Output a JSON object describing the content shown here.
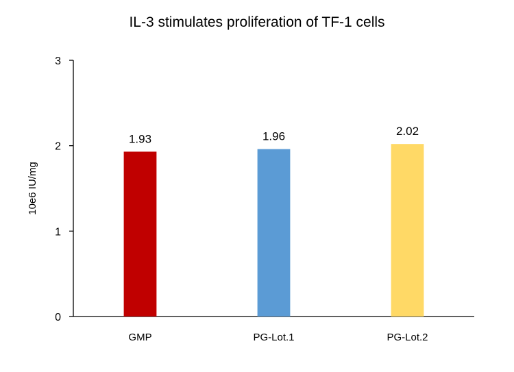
{
  "chart_data": {
    "type": "bar",
    "title": "IL-3 stimulates proliferation of  TF-1 cells",
    "xlabel": "",
    "ylabel": "10e6 IU/mg",
    "ylim": [
      0,
      3
    ],
    "yticks": [
      "0",
      "1",
      "2",
      "3"
    ],
    "categories": [
      "GMP",
      "PG-Lot.1",
      "PG-Lot.2"
    ],
    "values": [
      1.93,
      1.96,
      2.02
    ],
    "data_labels": [
      "1.93",
      "1.96",
      "2.02"
    ],
    "colors": [
      "#C00000",
      "#5B9BD5",
      "#FFD966"
    ],
    "grid": false,
    "legend": "none"
  }
}
